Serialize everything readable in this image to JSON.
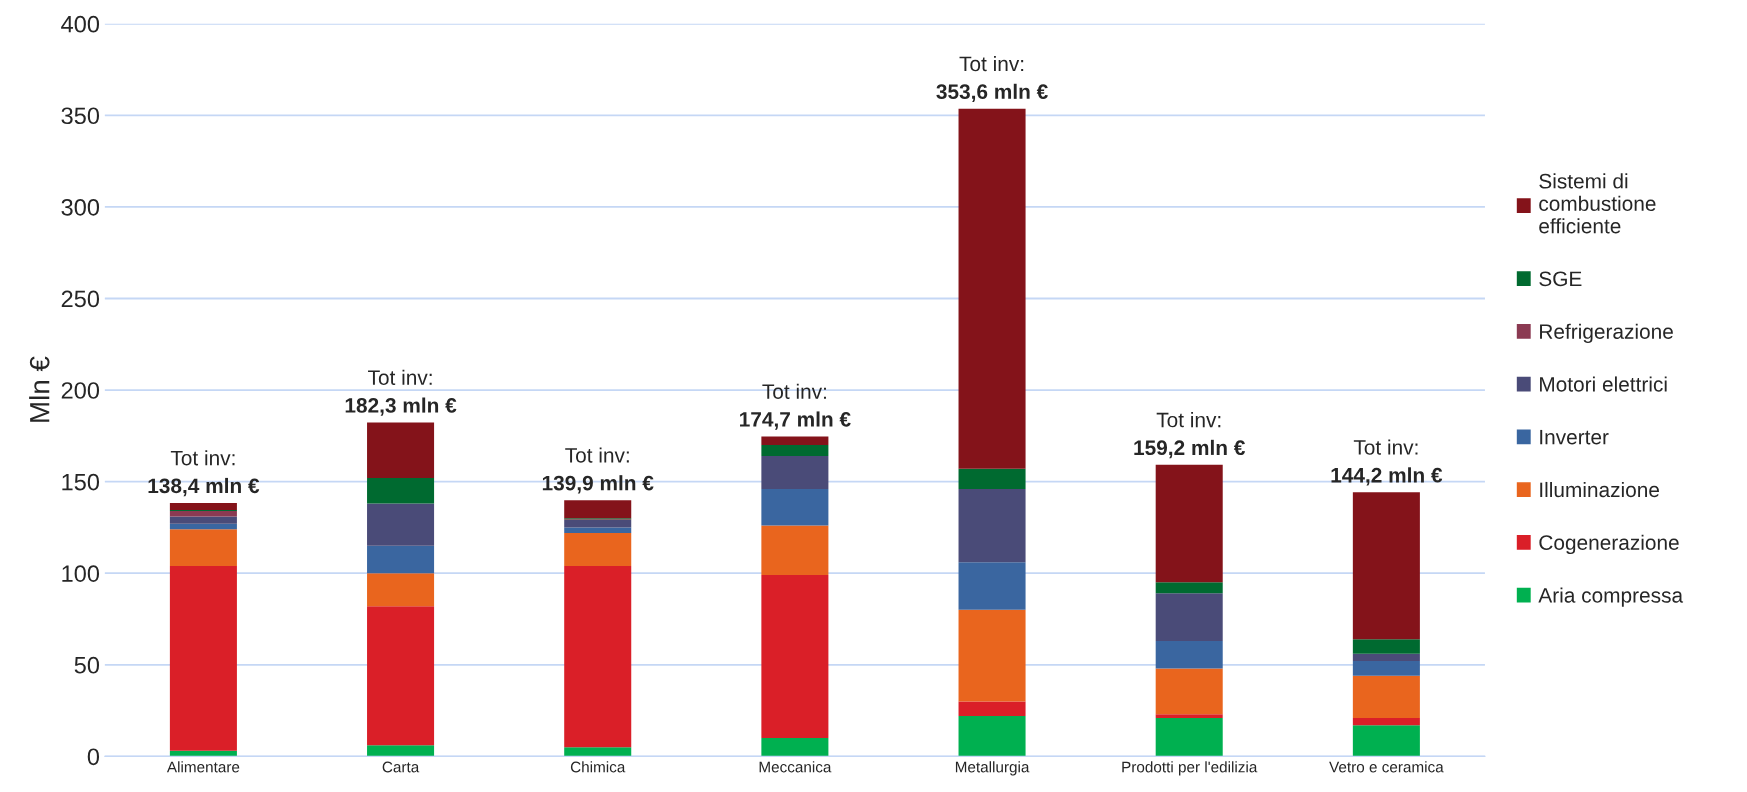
{
  "chart_data": {
    "type": "bar",
    "stacked": true,
    "ylabel": "Mln €",
    "categories": [
      "Alimentare",
      "Carta",
      "Chimica",
      "Meccanica",
      "Metallurgia",
      "Prodotti per l'edilizia",
      "Vetro e ceramica"
    ],
    "series": [
      {
        "name": "Aria compressa",
        "color": "#00b050",
        "values": [
          3,
          6,
          5,
          10,
          22,
          21,
          17
        ]
      },
      {
        "name": "Cogenerazione",
        "color": "#da1f28",
        "values": [
          101,
          76,
          99,
          89,
          8,
          2,
          4
        ]
      },
      {
        "name": "Illuminazione",
        "color": "#e9651e",
        "values": [
          20,
          18,
          18,
          27,
          50,
          25,
          23
        ]
      },
      {
        "name": "Inverter",
        "color": "#3a66a0",
        "values": [
          3,
          15,
          3,
          20,
          26,
          15,
          8
        ]
      },
      {
        "name": "Motori elettrici",
        "color": "#4a4b78",
        "values": [
          4,
          23,
          4,
          18,
          40,
          26,
          4
        ]
      },
      {
        "name": "Refrigerazione",
        "color": "#8b3a52",
        "values": [
          3,
          0,
          0.5,
          0,
          0,
          0,
          0
        ]
      },
      {
        "name": "SGE",
        "color": "#006a30",
        "values": [
          0.5,
          14,
          0.5,
          6,
          11,
          6,
          8
        ]
      },
      {
        "name": "Sistemi di\ncombustione\nefficiente",
        "color": "#84131a",
        "values": [
          3.9,
          30.3,
          9.9,
          4.7,
          196.6,
          64.2,
          80.2
        ]
      }
    ],
    "totals": [
      "Tot inv:\n138,4 mln €",
      "Tot inv:\n182,3 mln €",
      "Tot inv:\n139,9 mln €",
      "Tot inv:\n174,7 mln €",
      "Tot inv:\n353,6 mln €",
      "Tot inv:\n159,2 mln €",
      "Tot inv:\n144,2 mln €"
    ],
    "ylim": [
      0,
      400
    ],
    "yticks": [
      0,
      50,
      100,
      150,
      200,
      250,
      300,
      350,
      400
    ],
    "grid": "y",
    "legend": "right"
  }
}
